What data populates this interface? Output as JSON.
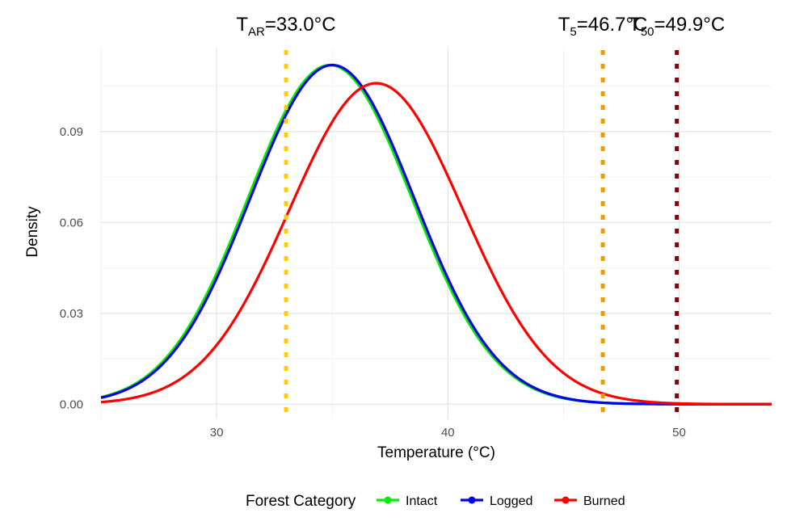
{
  "chart_data": {
    "type": "line",
    "title": "",
    "xlabel": "Temperature (°C)",
    "ylabel": "Density",
    "xlim": [
      25,
      54
    ],
    "ylim": [
      -0.005,
      0.118
    ],
    "x_ticks": [
      30,
      40,
      50
    ],
    "y_ticks": [
      0.0,
      0.03,
      0.06,
      0.09
    ],
    "y_tick_labels": [
      "0.00",
      "0.03",
      "0.06",
      "0.09"
    ],
    "grid": true,
    "legend": {
      "title": "Forest Category",
      "position": "bottom",
      "entries": [
        "Intact",
        "Logged",
        "Burned"
      ]
    },
    "series": [
      {
        "name": "Intact",
        "color": "#00ee00",
        "distribution": "normal",
        "mean": 34.9,
        "sd": 3.55,
        "peak_density": 0.112
      },
      {
        "name": "Logged",
        "color": "#0000ee",
        "distribution": "normal",
        "mean": 35.0,
        "sd": 3.55,
        "peak_density": 0.112
      },
      {
        "name": "Burned",
        "color": "#ff0000",
        "distribution": "normal",
        "mean": 36.9,
        "sd": 3.75,
        "peak_density": 0.106
      }
    ],
    "thresholds": [
      {
        "base": "T",
        "sub": "AR",
        "value_text": "=33.0°C",
        "x": 33.0,
        "color": "#ffcc00"
      },
      {
        "base": "T",
        "sub": "5",
        "value_text": "=46.7°C",
        "x": 46.7,
        "color": "#ee9a00"
      },
      {
        "base": "T",
        "sub": "50",
        "value_text": "=49.9°C",
        "x": 49.9,
        "color": "#8b0000"
      }
    ]
  }
}
